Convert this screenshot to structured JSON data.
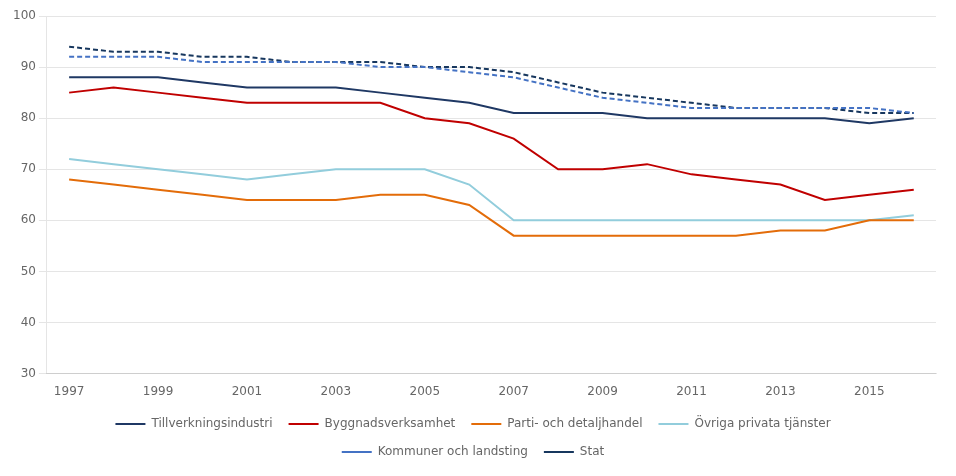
{
  "chart_data": {
    "type": "line",
    "x": [
      1997,
      1998,
      1999,
      2000,
      2001,
      2002,
      2003,
      2004,
      2005,
      2006,
      2007,
      2008,
      2009,
      2010,
      2011,
      2012,
      2013,
      2014,
      2015,
      2016
    ],
    "series": [
      {
        "name": "Tillverkningsindustri",
        "color": "#1f3864",
        "line_style": "solid",
        "values": [
          88,
          88,
          88,
          87,
          86,
          86,
          86,
          85,
          84,
          83,
          81,
          81,
          81,
          80,
          80,
          80,
          80,
          80,
          79,
          80
        ]
      },
      {
        "name": "Byggnadsverksamhet",
        "color": "#c00000",
        "line_style": "solid",
        "values": [
          85,
          86,
          85,
          84,
          83,
          83,
          83,
          83,
          80,
          79,
          76,
          70,
          70,
          71,
          69,
          68,
          67,
          64,
          65,
          66
        ]
      },
      {
        "name": "Parti- och detaljhandel",
        "color": "#e36c09",
        "line_style": "solid",
        "values": [
          68,
          67,
          66,
          65,
          64,
          64,
          64,
          65,
          65,
          63,
          57,
          57,
          57,
          57,
          57,
          57,
          58,
          58,
          60,
          60
        ]
      },
      {
        "name": "Övriga privata tjänster",
        "color": "#92cddc",
        "line_style": "solid",
        "values": [
          72,
          71,
          70,
          69,
          68,
          69,
          70,
          70,
          70,
          67,
          60,
          60,
          60,
          60,
          60,
          60,
          60,
          60,
          60,
          61
        ]
      },
      {
        "name": "Kommuner och landsting",
        "color": "#4472c4",
        "line_style": "dashed",
        "values": [
          92,
          92,
          92,
          91,
          91,
          91,
          91,
          90,
          90,
          89,
          88,
          86,
          84,
          83,
          82,
          82,
          82,
          82,
          82,
          81
        ]
      },
      {
        "name": "Stat",
        "color": "#17375e",
        "line_style": "dashed",
        "values": [
          94,
          93,
          93,
          92,
          92,
          91,
          91,
          91,
          90,
          90,
          89,
          87,
          85,
          84,
          83,
          82,
          82,
          82,
          81,
          81
        ]
      }
    ],
    "xlim": [
      1996.5,
      2016.5
    ],
    "xticks": [
      1997,
      1999,
      2001,
      2003,
      2005,
      2007,
      2009,
      2011,
      2013,
      2015
    ],
    "ylim": [
      30,
      100
    ],
    "yticks": [
      30,
      40,
      50,
      60,
      70,
      80,
      90,
      100
    ],
    "grid": "y",
    "legend": "bottom"
  }
}
